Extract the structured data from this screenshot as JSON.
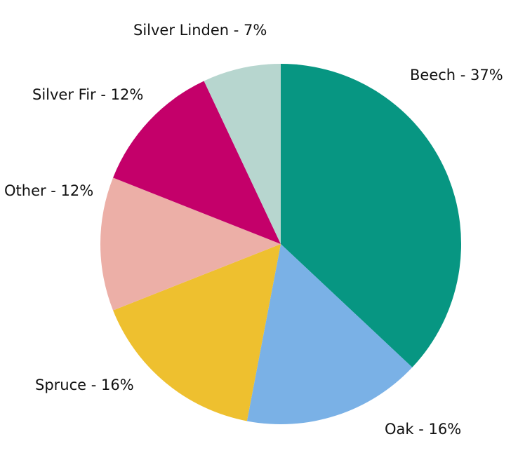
{
  "chart_data": {
    "type": "pie",
    "categories": [
      "Beech - 37%",
      "Oak - 16%",
      "Spruce - 16%",
      "Other - 12%",
      "Silver Fir - 12%",
      "Silver Linden - 7%"
    ],
    "values": [
      37,
      16,
      16,
      12,
      12,
      7
    ],
    "colors": [
      "#079682",
      "#7ab1e6",
      "#eec02f",
      "#ecafa7",
      "#c4006a",
      "#b7d6cf"
    ]
  }
}
